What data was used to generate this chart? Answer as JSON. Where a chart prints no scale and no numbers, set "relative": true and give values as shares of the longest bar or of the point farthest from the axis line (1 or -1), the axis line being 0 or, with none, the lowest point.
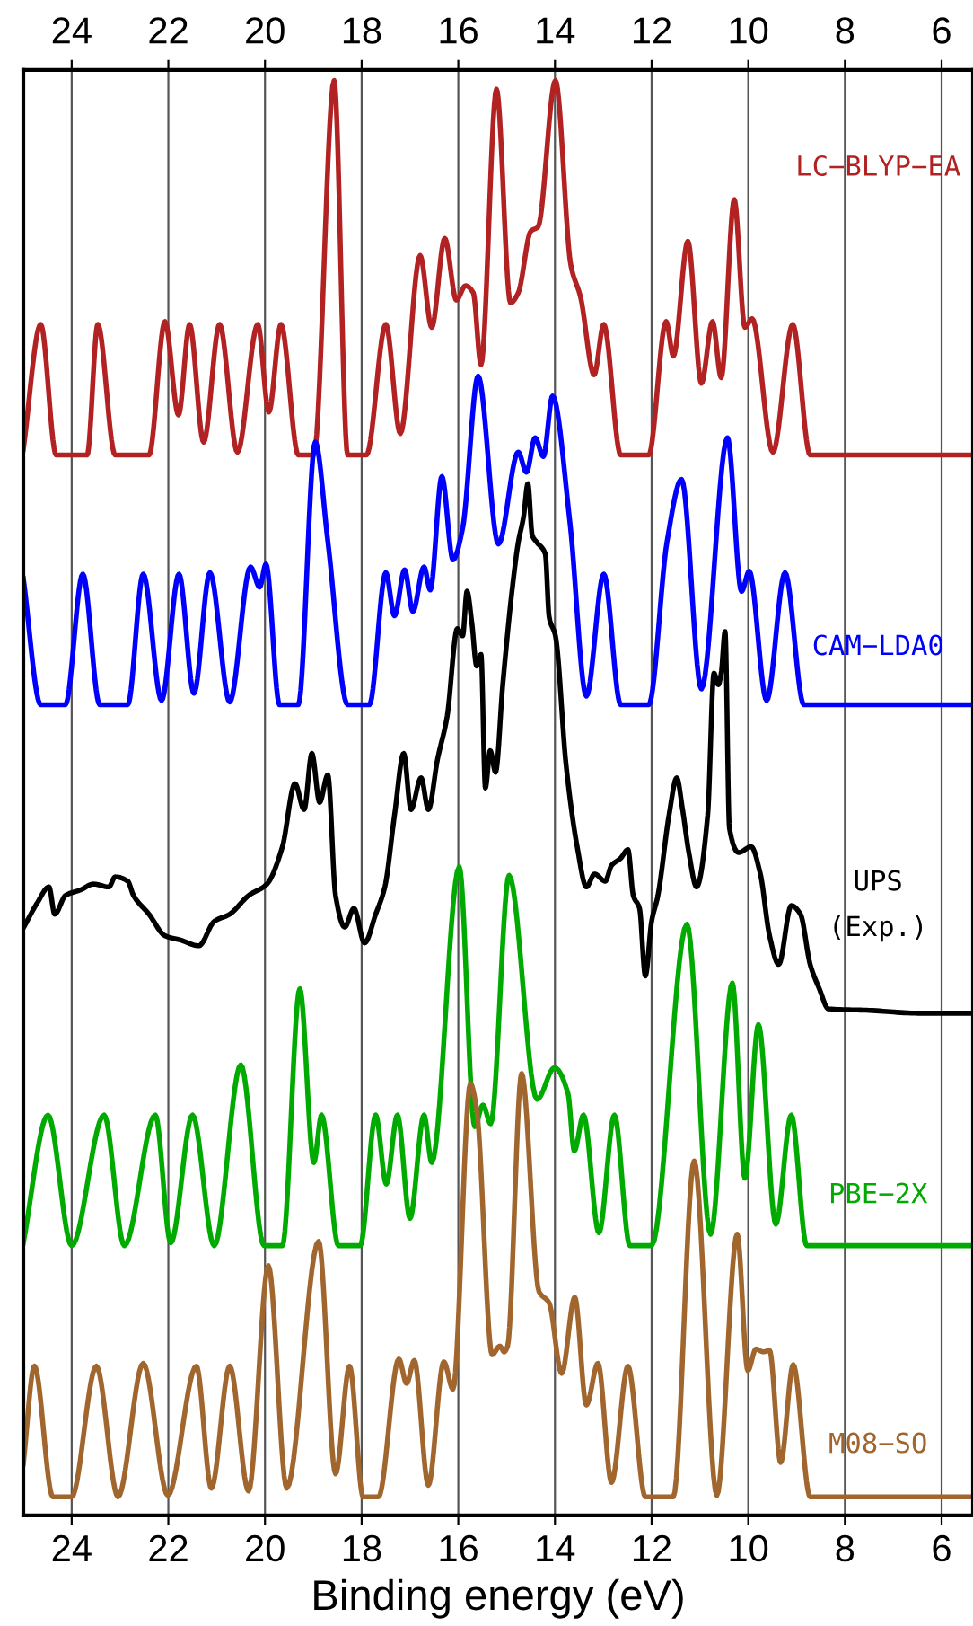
{
  "chart_data": {
    "type": "line",
    "xlabel": "Binding energy (eV)",
    "relative": true,
    "grid": "x",
    "tick_labels": "x",
    "xlim": [
      25,
      5.35
    ],
    "xticks": [
      24,
      22,
      20,
      18,
      16,
      14,
      12,
      10,
      8,
      6
    ],
    "x2lim": [
      25,
      5.35
    ],
    "x2ticks": [
      24,
      22,
      20,
      18,
      16,
      14,
      12,
      10,
      8,
      6
    ],
    "series": [
      {
        "name": "LC−BLYP−EA",
        "color": "#b22222",
        "x": [
          25.0,
          24.64,
          24.32,
          23.68,
          23.46,
          23.1,
          22.4,
          22.07,
          21.79,
          21.56,
          21.27,
          20.94,
          20.57,
          20.15,
          19.92,
          19.67,
          19.31,
          18.99,
          18.57,
          18.29,
          17.9,
          17.5,
          17.2,
          16.79,
          16.55,
          16.28,
          16.04,
          15.85,
          15.69,
          15.53,
          15.21,
          14.92,
          14.76,
          14.5,
          14.35,
          13.99,
          13.67,
          13.47,
          13.19,
          12.99,
          12.64,
          12.06,
          11.7,
          11.55,
          11.25,
          10.97,
          10.74,
          10.56,
          10.29,
          10.07,
          9.92,
          9.49,
          9.08,
          8.72,
          5.35
        ],
        "values": [
          0.743,
          0.83,
          0.739,
          0.739,
          0.83,
          0.739,
          0.739,
          0.832,
          0.767,
          0.83,
          0.748,
          0.83,
          0.741,
          0.83,
          0.769,
          0.83,
          0.739,
          0.739,
          1.0,
          0.739,
          0.739,
          0.83,
          0.754,
          0.878,
          0.828,
          0.89,
          0.847,
          0.857,
          0.852,
          0.802,
          0.994,
          0.845,
          0.852,
          0.895,
          0.898,
          1.0,
          0.871,
          0.849,
          0.795,
          0.83,
          0.739,
          0.739,
          0.832,
          0.808,
          0.888,
          0.789,
          0.832,
          0.793,
          0.917,
          0.828,
          0.834,
          0.741,
          0.83,
          0.739,
          0.739
        ]
      },
      {
        "name": "CAM−LDA0",
        "color": "#0000ff",
        "x": [
          25.0,
          24.64,
          24.13,
          23.77,
          23.42,
          22.84,
          22.52,
          22.14,
          21.78,
          21.47,
          21.14,
          20.73,
          20.3,
          20.11,
          19.98,
          19.7,
          19.31,
          18.96,
          18.7,
          18.29,
          17.84,
          17.5,
          17.32,
          17.11,
          16.94,
          16.71,
          16.58,
          16.34,
          16.11,
          15.91,
          15.59,
          15.17,
          14.76,
          14.59,
          14.41,
          14.24,
          14.05,
          13.69,
          13.35,
          12.99,
          12.64,
          12.06,
          11.68,
          11.38,
          10.97,
          10.43,
          10.14,
          9.98,
          9.62,
          9.24,
          8.85,
          5.35
        ],
        "values": [
          0.653,
          0.565,
          0.565,
          0.656,
          0.565,
          0.565,
          0.656,
          0.568,
          0.656,
          0.573,
          0.657,
          0.567,
          0.661,
          0.647,
          0.663,
          0.565,
          0.565,
          0.748,
          0.679,
          0.565,
          0.565,
          0.657,
          0.627,
          0.659,
          0.63,
          0.661,
          0.645,
          0.724,
          0.666,
          0.688,
          0.794,
          0.677,
          0.741,
          0.727,
          0.751,
          0.738,
          0.78,
          0.692,
          0.571,
          0.656,
          0.565,
          0.565,
          0.679,
          0.722,
          0.576,
          0.751,
          0.644,
          0.658,
          0.568,
          0.657,
          0.565,
          0.565
        ]
      },
      {
        "name": "UPS\n(Exp.)",
        "color": "#000000",
        "x": [
          24.99,
          24.71,
          24.47,
          24.35,
          24.13,
          23.81,
          23.55,
          23.23,
          23.1,
          22.84,
          22.72,
          22.4,
          22.07,
          21.75,
          21.37,
          21.05,
          20.73,
          20.34,
          19.96,
          19.64,
          19.38,
          19.19,
          19.03,
          18.87,
          18.7,
          18.54,
          18.35,
          18.16,
          17.94,
          17.71,
          17.52,
          17.32,
          17.13,
          16.98,
          16.77,
          16.62,
          16.43,
          16.23,
          16.02,
          15.91,
          15.82,
          15.72,
          15.62,
          15.53,
          15.44,
          15.34,
          15.23,
          15.08,
          14.89,
          14.76,
          14.65,
          14.56,
          14.47,
          14.37,
          14.2,
          14.12,
          13.99,
          13.77,
          13.54,
          13.35,
          13.18,
          12.96,
          12.83,
          12.64,
          12.49,
          12.38,
          12.25,
          12.13,
          12.0,
          11.87,
          11.64,
          11.48,
          11.36,
          11.23,
          11.07,
          10.84,
          10.71,
          10.62,
          10.56,
          10.48,
          10.39,
          10.2,
          9.94,
          9.75,
          9.56,
          9.37,
          9.11,
          8.92,
          8.72,
          8.53,
          8.34,
          7.5,
          6.48,
          5.35
        ],
        "values": [
          0.41,
          0.427,
          0.438,
          0.419,
          0.432,
          0.436,
          0.44,
          0.438,
          0.445,
          0.442,
          0.432,
          0.419,
          0.404,
          0.401,
          0.397,
          0.414,
          0.419,
          0.432,
          0.44,
          0.466,
          0.51,
          0.492,
          0.531,
          0.497,
          0.516,
          0.432,
          0.41,
          0.423,
          0.399,
          0.419,
          0.438,
          0.488,
          0.531,
          0.492,
          0.514,
          0.492,
          0.527,
          0.557,
          0.618,
          0.613,
          0.644,
          0.622,
          0.592,
          0.6,
          0.507,
          0.533,
          0.518,
          0.579,
          0.644,
          0.678,
          0.696,
          0.719,
          0.683,
          0.678,
          0.67,
          0.626,
          0.613,
          0.523,
          0.466,
          0.438,
          0.447,
          0.442,
          0.453,
          0.458,
          0.464,
          0.432,
          0.423,
          0.376,
          0.414,
          0.432,
          0.488,
          0.514,
          0.492,
          0.462,
          0.438,
          0.488,
          0.587,
          0.579,
          0.587,
          0.616,
          0.479,
          0.462,
          0.466,
          0.447,
          0.404,
          0.384,
          0.425,
          0.419,
          0.384,
          0.367,
          0.353,
          0.352,
          0.35,
          0.35
        ]
      },
      {
        "name": "PBE−2X",
        "color": "#00aa00",
        "x": [
          25.0,
          24.49,
          24.0,
          23.33,
          22.91,
          22.27,
          21.95,
          21.5,
          21.05,
          20.5,
          20.02,
          19.64,
          19.28,
          18.99,
          18.83,
          18.48,
          18.03,
          17.71,
          17.49,
          17.26,
          17.0,
          16.71,
          16.55,
          15.98,
          15.66,
          15.49,
          15.33,
          14.95,
          14.37,
          14.01,
          13.73,
          13.6,
          13.41,
          13.09,
          12.77,
          12.45,
          12.0,
          11.27,
          10.78,
          10.33,
          10.07,
          9.79,
          9.43,
          9.11,
          8.79,
          5.35
        ],
        "values": [
          0.19,
          0.279,
          0.188,
          0.279,
          0.188,
          0.279,
          0.19,
          0.279,
          0.188,
          0.314,
          0.188,
          0.188,
          0.367,
          0.246,
          0.279,
          0.188,
          0.188,
          0.279,
          0.231,
          0.279,
          0.207,
          0.279,
          0.246,
          0.452,
          0.271,
          0.286,
          0.273,
          0.446,
          0.29,
          0.312,
          0.294,
          0.254,
          0.279,
          0.197,
          0.279,
          0.188,
          0.188,
          0.412,
          0.196,
          0.371,
          0.235,
          0.342,
          0.203,
          0.279,
          0.188,
          0.188
        ]
      },
      {
        "name": "M08−SO",
        "color": "#a0662e",
        "x": [
          25.0,
          24.77,
          24.39,
          24.0,
          23.49,
          23.04,
          22.52,
          22.01,
          21.42,
          21.11,
          20.73,
          20.34,
          19.93,
          19.55,
          18.89,
          18.54,
          18.25,
          17.97,
          17.65,
          17.23,
          17.07,
          16.91,
          16.62,
          16.3,
          16.11,
          15.75,
          15.62,
          15.3,
          15.14,
          15.05,
          14.98,
          14.69,
          14.33,
          14.12,
          13.86,
          13.59,
          13.35,
          13.11,
          12.83,
          12.49,
          12.13,
          11.55,
          11.12,
          10.65,
          10.23,
          10.01,
          9.84,
          9.69,
          9.56,
          9.33,
          9.07,
          8.72,
          5.35
        ],
        "values": [
          0.036,
          0.104,
          0.013,
          0.013,
          0.104,
          0.013,
          0.106,
          0.014,
          0.104,
          0.019,
          0.104,
          0.017,
          0.174,
          0.019,
          0.191,
          0.029,
          0.104,
          0.013,
          0.013,
          0.109,
          0.092,
          0.108,
          0.021,
          0.107,
          0.088,
          0.301,
          0.283,
          0.112,
          0.118,
          0.114,
          0.118,
          0.308,
          0.156,
          0.148,
          0.099,
          0.152,
          0.077,
          0.106,
          0.023,
          0.104,
          0.013,
          0.013,
          0.247,
          0.014,
          0.196,
          0.101,
          0.116,
          0.114,
          0.115,
          0.037,
          0.105,
          0.013,
          0.013
        ]
      }
    ]
  }
}
